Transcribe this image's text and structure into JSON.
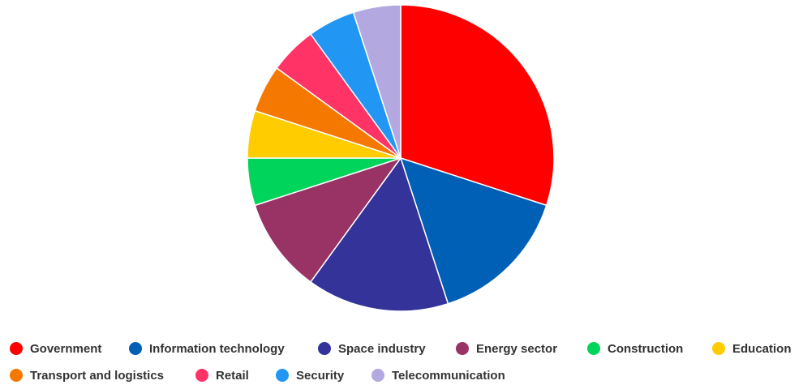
{
  "chart_data": {
    "type": "pie",
    "title": "",
    "slices": [
      {
        "label": "Government",
        "value": 30,
        "color": "#ff0000"
      },
      {
        "label": "Information technology",
        "value": 15,
        "color": "#0060b6"
      },
      {
        "label": "Space industry",
        "value": 15,
        "color": "#333399"
      },
      {
        "label": "Energy sector",
        "value": 10,
        "color": "#993366"
      },
      {
        "label": "Construction",
        "value": 5,
        "color": "#00d45a"
      },
      {
        "label": "Education",
        "value": 5,
        "color": "#ffcc00"
      },
      {
        "label": "Transport and logistics",
        "value": 5,
        "color": "#f57900"
      },
      {
        "label": "Retail",
        "value": 5,
        "color": "#ff3366"
      },
      {
        "label": "Security",
        "value": 5,
        "color": "#2196f3"
      },
      {
        "label": "Telecommunication",
        "value": 5,
        "color": "#b3a9e0"
      }
    ],
    "legend_position": "bottom"
  }
}
